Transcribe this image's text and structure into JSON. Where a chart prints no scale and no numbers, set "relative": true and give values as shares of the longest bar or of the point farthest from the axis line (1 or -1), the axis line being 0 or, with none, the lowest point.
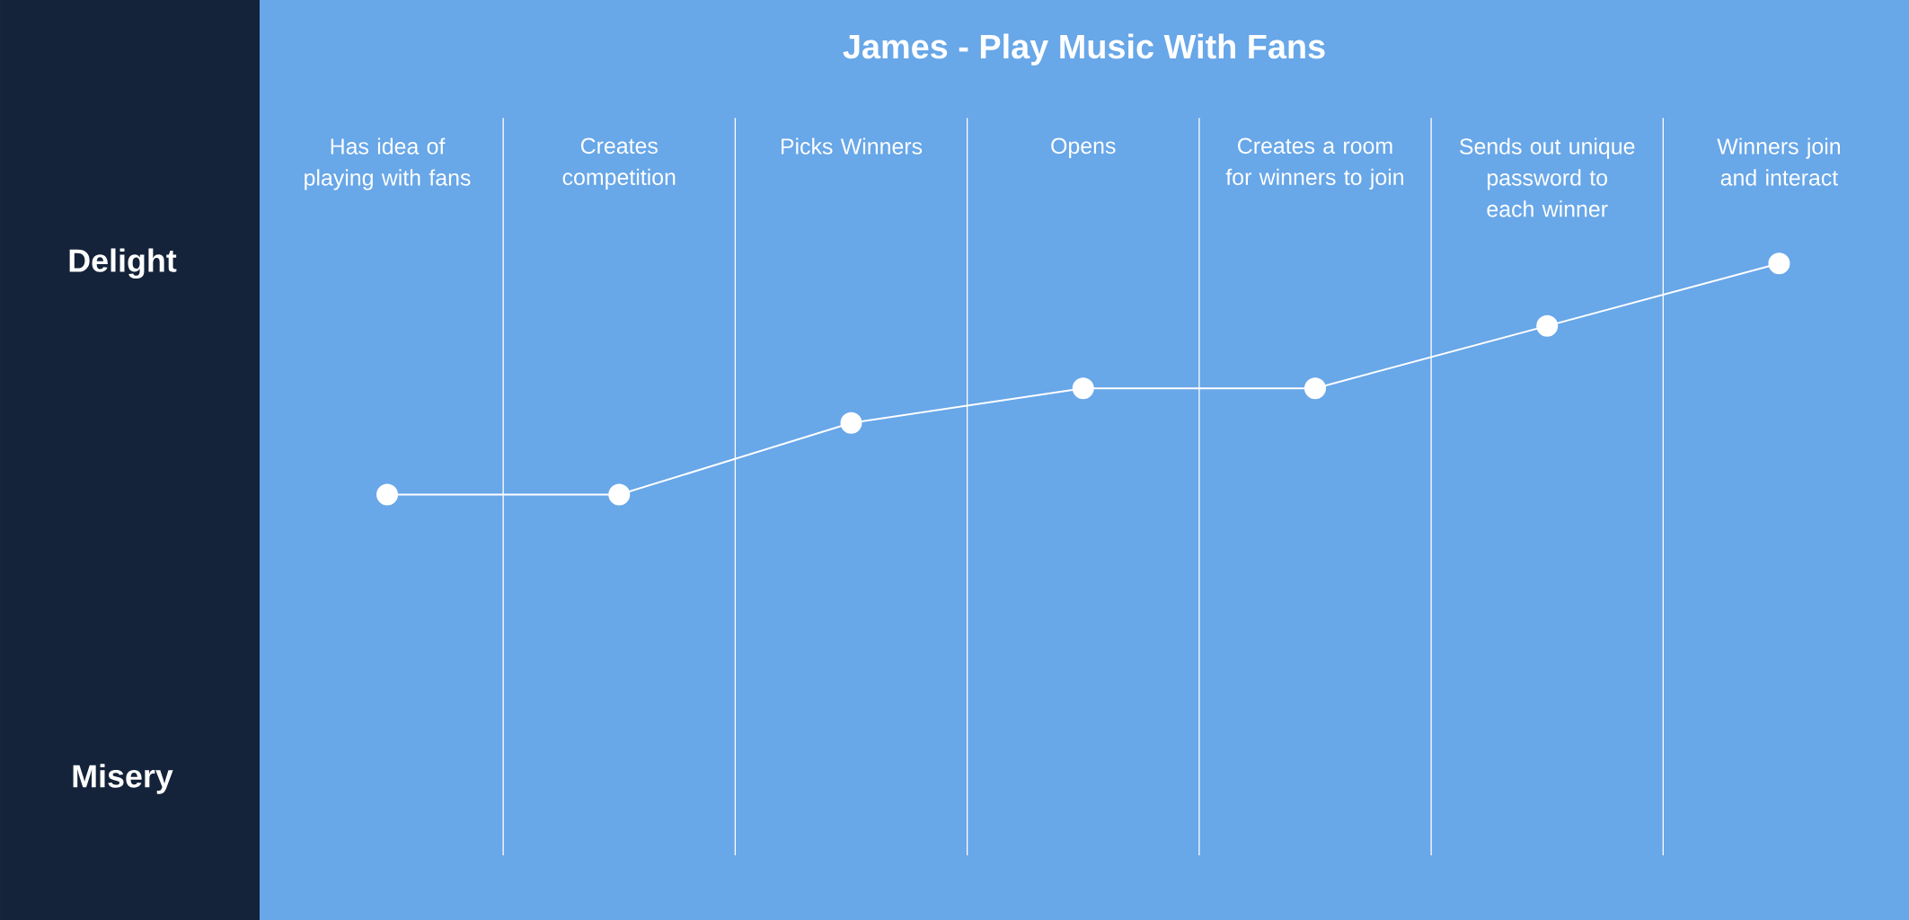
{
  "chart_data": {
    "type": "line",
    "title": "James - Play Music With Fans",
    "categories": [
      "Has idea of playing with fans",
      "Creates competition",
      "Picks Winners",
      "Opens",
      "Creates a room for winners to join",
      "Sends out unique password to each winner",
      "Winners join and interact"
    ],
    "values": [
      0,
      0,
      0.31,
      0.46,
      0.46,
      0.73,
      1
    ],
    "relative": true,
    "color": "#ffffff",
    "annotations": [
      "Delight",
      "Misery"
    ],
    "grid": "x",
    "marker": "circle"
  }
}
